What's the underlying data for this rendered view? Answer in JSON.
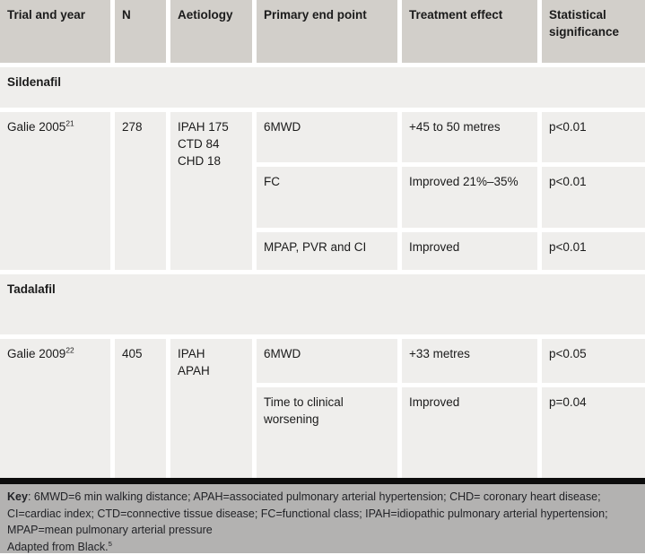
{
  "table": {
    "columns": [
      "Trial and year",
      "N",
      "Aetiology",
      "Primary end point",
      "Treatment effect",
      "Statistical significance"
    ],
    "sections": [
      {
        "name": "Sildenafil",
        "trials": [
          {
            "trial": "Galie 2005",
            "ref": "21",
            "n": "278",
            "aetiology": [
              "IPAH 175",
              "CTD 84",
              "CHD 18"
            ],
            "endpoints": [
              {
                "endpoint": "6MWD",
                "effect": "+45 to 50 metres",
                "significance": "p<0.01"
              },
              {
                "endpoint": "FC",
                "effect": "Improved 21%–35%",
                "significance": "p<0.01"
              },
              {
                "endpoint": "MPAP, PVR and CI",
                "effect": "Improved",
                "significance": "p<0.01"
              }
            ]
          }
        ]
      },
      {
        "name": "Tadalafil",
        "trials": [
          {
            "trial": "Galie 2009",
            "ref": "22",
            "n": "405",
            "aetiology": [
              "IPAH",
              "APAH"
            ],
            "endpoints": [
              {
                "endpoint": "6MWD",
                "effect": "+33 metres",
                "significance": "p<0.05"
              },
              {
                "endpoint": "Time to clinical worsening",
                "effect": "Improved",
                "significance": "p=0.04"
              }
            ]
          }
        ]
      }
    ]
  },
  "footer": {
    "key_label": "Key",
    "key_text": ": 6MWD=6 min walking distance; APAH=associated pulmonary arterial hypertension; CHD= coronary heart disease; CI=cardiac index; CTD=connective tissue disease; FC=functional class; IPAH=idiopathic pulmonary arterial hypertension; MPAP=mean pulmonary arterial pressure",
    "adapted_text": "Adapted from Black.",
    "adapted_ref": "5"
  },
  "colors": {
    "header_bg": "#d2cfca",
    "row_bg": "#efeeec",
    "footer_bg": "#b3b2b1",
    "divider": "#0c0c0c",
    "text": "#1b1b1b"
  }
}
